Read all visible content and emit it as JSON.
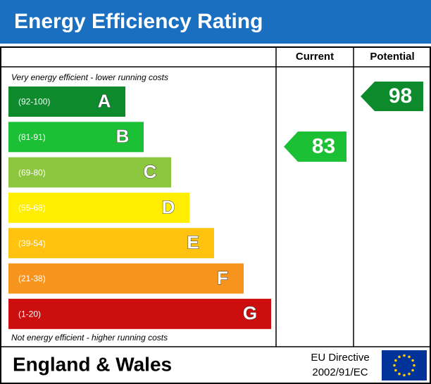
{
  "header": {
    "title": "Energy Efficiency Rating"
  },
  "columns": {
    "current": "Current",
    "potential": "Potential"
  },
  "top_note": "Very energy efficient - lower running costs",
  "bottom_note": "Not energy efficient - higher running costs",
  "bands": [
    {
      "range": "(92-100)",
      "letter": "A",
      "color": "#0c8a2c"
    },
    {
      "range": "(81-91)",
      "letter": "B",
      "color": "#1cc034"
    },
    {
      "range": "(69-80)",
      "letter": "C",
      "color": "#8cc63f"
    },
    {
      "range": "(55-68)",
      "letter": "D",
      "color": "#ffee00"
    },
    {
      "range": "(39-54)",
      "letter": "E",
      "color": "#ffc20e"
    },
    {
      "range": "(21-38)",
      "letter": "F",
      "color": "#f7941d"
    },
    {
      "range": "(1-20)",
      "letter": "G",
      "color": "#cc0e0e"
    }
  ],
  "current": {
    "value": "83",
    "color": "#1cc034"
  },
  "potential": {
    "value": "98",
    "color": "#0c8a2c"
  },
  "footer": {
    "region": "England & Wales",
    "directive_line1": "EU Directive",
    "directive_line2": "2002/91/EC"
  }
}
